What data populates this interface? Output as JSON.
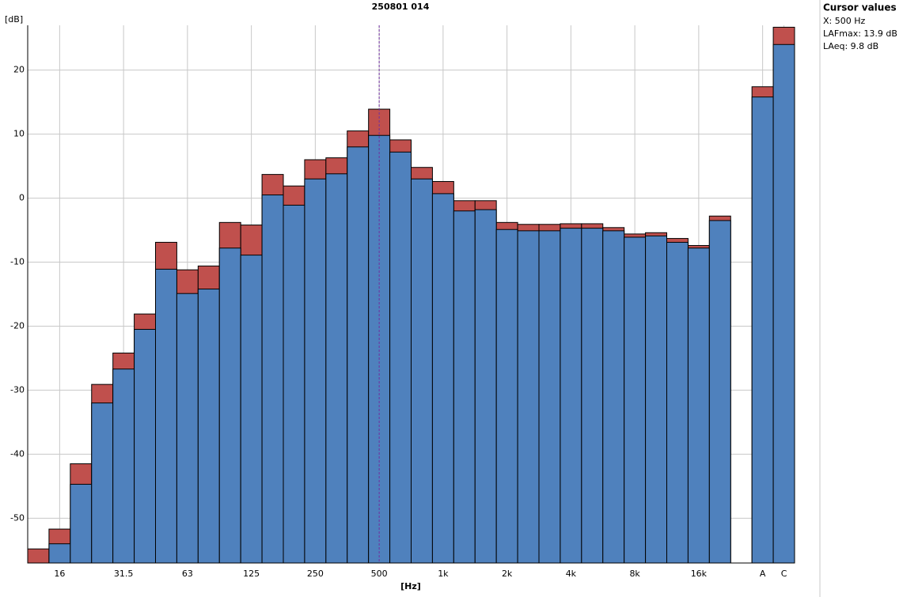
{
  "chart_data": {
    "type": "bar",
    "title": "250801 014",
    "y_label": "[dB]",
    "x_label": "[Hz]",
    "categories": [
      null,
      "16",
      null,
      null,
      "31.5",
      null,
      null,
      "63",
      null,
      null,
      "125",
      null,
      null,
      "250",
      null,
      null,
      "500",
      null,
      null,
      "1k",
      null,
      null,
      "2k",
      null,
      null,
      "4k",
      null,
      null,
      "8k",
      null,
      null,
      "16k",
      null,
      null,
      "A",
      "C"
    ],
    "series": [
      {
        "name": "LAFmax",
        "color": "#c0504d",
        "values": [
          -54.8,
          -51.7,
          -41.5,
          -29.1,
          -24.2,
          -18.1,
          -6.9,
          -11.2,
          -10.6,
          -3.8,
          -4.2,
          3.7,
          1.9,
          6.0,
          6.3,
          10.5,
          13.9,
          9.1,
          4.8,
          2.6,
          -0.4,
          -0.4,
          -3.8,
          -4.1,
          -4.1,
          -4.0,
          -4.0,
          -4.6,
          -5.6,
          -5.4,
          -6.3,
          -7.4,
          -2.8,
          null,
          17.4,
          26.7
        ]
      },
      {
        "name": "LAeq",
        "color": "#4f81bd",
        "values": [
          null,
          -54.0,
          -44.7,
          -32.0,
          -26.7,
          -20.5,
          -11.1,
          -14.9,
          -14.2,
          -7.8,
          -8.9,
          0.5,
          -1.1,
          3.0,
          3.8,
          8.0,
          9.8,
          7.2,
          3.0,
          0.7,
          -2.0,
          -1.8,
          -4.9,
          -5.1,
          -5.1,
          -4.7,
          -4.7,
          -5.1,
          -6.1,
          -5.9,
          -6.9,
          -7.8,
          -3.5,
          null,
          15.8,
          24.0
        ]
      }
    ],
    "ylim": [
      -57,
      27
    ],
    "yticks": [
      -50,
      -40,
      -30,
      -20,
      -10,
      0,
      10,
      20
    ],
    "grid": true,
    "cursor": {
      "category": "500",
      "title": "Cursor values",
      "lines": [
        "X: 500 Hz",
        "LAFmax: 13.9 dB",
        "LAeq: 9.8 dB"
      ]
    }
  }
}
